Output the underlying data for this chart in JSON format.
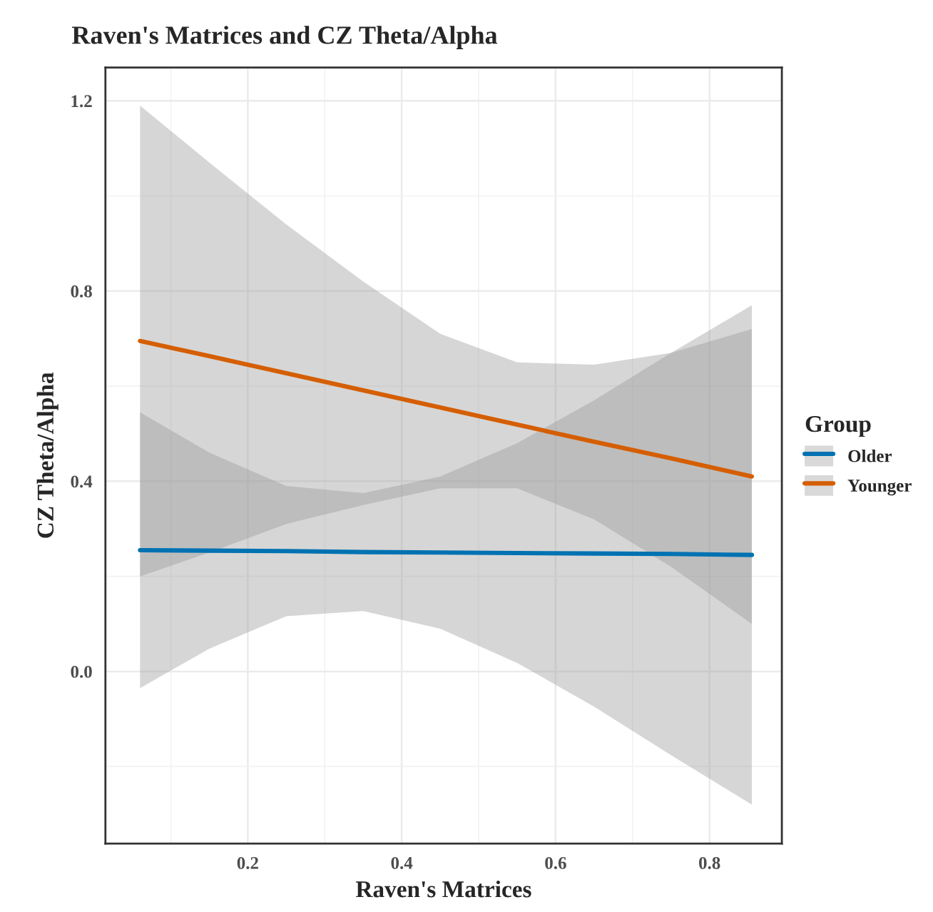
{
  "chart_data": {
    "type": "line",
    "title": "Raven's Matrices and CZ Theta/Alpha",
    "xlabel": "Raven's Matrices",
    "ylabel": "CZ Theta/Alpha",
    "legend_title": "Group",
    "xlim": [
      0.015,
      0.894
    ],
    "ylim": [
      -0.362,
      1.27
    ],
    "xticks": [
      0.2,
      0.4,
      0.6,
      0.8
    ],
    "yticks": [
      {
        "value": 0.0,
        "label": "0.0"
      },
      0.4,
      0.8,
      1.2
    ],
    "grid": true,
    "legend": "right",
    "series": [
      {
        "name": "Older",
        "color": "#0072b2",
        "x": [
          0.06,
          0.15,
          0.25,
          0.35,
          0.45,
          0.55,
          0.65,
          0.75,
          0.855
        ],
        "values": [
          0.255,
          0.254,
          0.253,
          0.251,
          0.25,
          0.249,
          0.248,
          0.247,
          0.245
        ],
        "lower": [
          -0.035,
          0.048,
          0.116,
          0.127,
          0.09,
          0.018,
          -0.074,
          -0.176,
          -0.28
        ],
        "upper": [
          0.545,
          0.46,
          0.39,
          0.375,
          0.41,
          0.48,
          0.57,
          0.67,
          0.77
        ]
      },
      {
        "name": "Younger",
        "color": "#d55e00",
        "x": [
          0.06,
          0.15,
          0.25,
          0.35,
          0.45,
          0.55,
          0.65,
          0.75,
          0.855
        ],
        "values": [
          0.695,
          0.663,
          0.627,
          0.591,
          0.555,
          0.519,
          0.483,
          0.448,
          0.41
        ],
        "lower": [
          0.2,
          0.25,
          0.31,
          0.35,
          0.385,
          0.385,
          0.32,
          0.22,
          0.1
        ],
        "upper": [
          1.19,
          1.07,
          0.94,
          0.82,
          0.71,
          0.65,
          0.645,
          0.67,
          0.72
        ]
      }
    ]
  }
}
